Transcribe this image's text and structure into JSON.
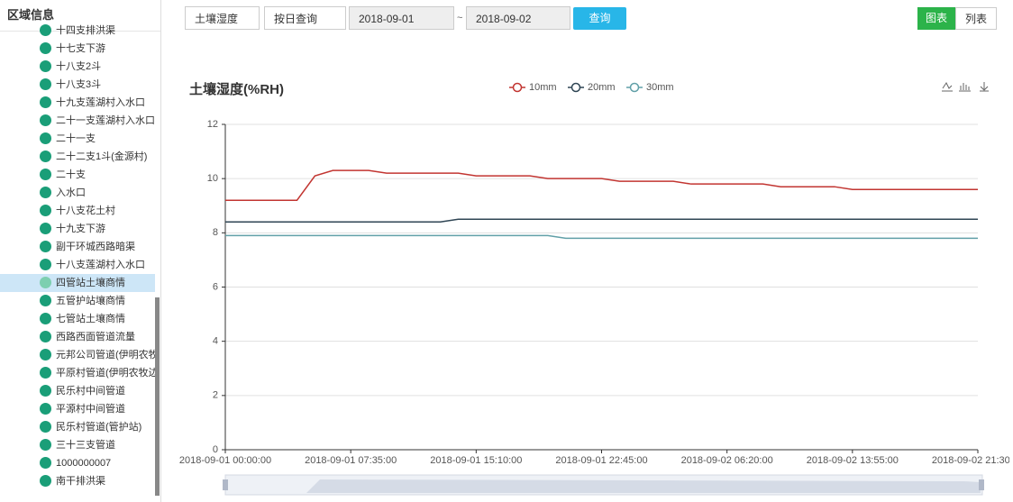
{
  "sidebar": {
    "title": "区域信息",
    "selected": 14,
    "items": [
      "十四支排洪渠",
      "十七支下游",
      "十八支2斗",
      "十八支3斗",
      "十九支莲湖村入水口",
      "二十一支莲湖村入水口",
      "二十一支",
      "二十二支1斗(金源村)",
      "二十支",
      "入水口",
      "十八支花土村",
      "十九支下游",
      "副干环城西路暗渠",
      "十八支莲湖村入水口",
      "四管站土壤商情",
      "五管护站壤商情",
      "七管站土壤商情",
      "西路西面管道流量",
      "元邦公司管道(伊明农牧",
      "平原村管道(伊明农牧边",
      "民乐村中间管道",
      "平源村中间管道",
      "民乐村管道(管护站)",
      "三十三支管道",
      "1000000007",
      "南干排洪渠"
    ]
  },
  "toolbar": {
    "metric": "土壤湿度",
    "mode": "按日查询",
    "start": "2018-09-01",
    "separator": "~",
    "end": "2018-09-02",
    "query": "查询",
    "view_chart": "图表",
    "view_list": "列表"
  },
  "chart_data": {
    "type": "line",
    "title": "土壤湿度(%RH)",
    "ylim": [
      0,
      12
    ],
    "yticks": [
      0,
      2,
      4,
      6,
      8,
      10,
      12
    ],
    "grid": true,
    "categories": [
      "2018-09-01 00:00:00",
      null,
      null,
      null,
      null,
      null,
      null,
      "2018-09-01 07:35:00",
      null,
      null,
      null,
      null,
      null,
      null,
      "2018-09-01 15:10:00",
      null,
      null,
      null,
      null,
      null,
      null,
      "2018-09-01 22:45:00",
      null,
      null,
      null,
      null,
      null,
      null,
      "2018-09-02 06:20:00",
      null,
      null,
      null,
      null,
      null,
      null,
      "2018-09-02 13:55:00",
      null,
      null,
      null,
      null,
      null,
      null,
      "2018-09-02 21:30:00"
    ],
    "series": [
      {
        "name": "10mm",
        "color": "#c23531",
        "values": [
          9.2,
          9.2,
          9.2,
          9.2,
          9.2,
          10.1,
          10.3,
          10.3,
          10.3,
          10.2,
          10.2,
          10.2,
          10.2,
          10.2,
          10.1,
          10.1,
          10.1,
          10.1,
          10.0,
          10.0,
          10.0,
          10.0,
          9.9,
          9.9,
          9.9,
          9.9,
          9.8,
          9.8,
          9.8,
          9.8,
          9.8,
          9.7,
          9.7,
          9.7,
          9.7,
          9.6,
          9.6,
          9.6,
          9.6,
          9.6,
          9.6,
          9.6,
          9.6
        ]
      },
      {
        "name": "20mm",
        "color": "#2f4554",
        "values": [
          8.4,
          8.4,
          8.4,
          8.4,
          8.4,
          8.4,
          8.4,
          8.4,
          8.4,
          8.4,
          8.4,
          8.4,
          8.4,
          8.5,
          8.5,
          8.5,
          8.5,
          8.5,
          8.5,
          8.5,
          8.5,
          8.5,
          8.5,
          8.5,
          8.5,
          8.5,
          8.5,
          8.5,
          8.5,
          8.5,
          8.5,
          8.5,
          8.5,
          8.5,
          8.5,
          8.5,
          8.5,
          8.5,
          8.5,
          8.5,
          8.5,
          8.5,
          8.5
        ]
      },
      {
        "name": "30mm",
        "color": "#61a0a8",
        "values": [
          7.9,
          7.9,
          7.9,
          7.9,
          7.9,
          7.9,
          7.9,
          7.9,
          7.9,
          7.9,
          7.9,
          7.9,
          7.9,
          7.9,
          7.9,
          7.9,
          7.9,
          7.9,
          7.9,
          7.8,
          7.8,
          7.8,
          7.8,
          7.8,
          7.8,
          7.8,
          7.8,
          7.8,
          7.8,
          7.8,
          7.8,
          7.8,
          7.8,
          7.8,
          7.8,
          7.8,
          7.8,
          7.8,
          7.8,
          7.8,
          7.8,
          7.8,
          7.8
        ]
      }
    ]
  }
}
